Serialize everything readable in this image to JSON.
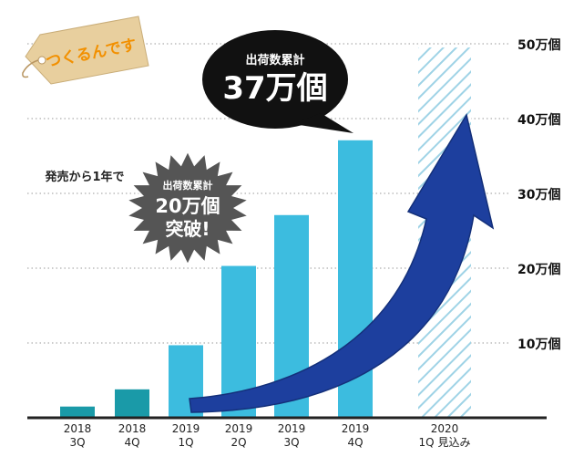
{
  "brand": {
    "tag_text": "つくるんです",
    "tag_color": "#e8cf9e",
    "tag_text_color": "#f29000"
  },
  "colors": {
    "bar_2018": "#1a9aa8",
    "bar_2019": "#3cbcdf",
    "projection_hatch": "#9fd3e6",
    "arrow": "#1d3f9e",
    "grid": "#9a9a9a"
  },
  "annotations": {
    "first_year_note": "発売から1年で",
    "burst_line1": "出荷数累計",
    "burst_line2": "20万個",
    "burst_line3": "突破!",
    "bubble_line1": "出荷数累計",
    "bubble_line2": "37万個"
  },
  "chart_data": {
    "type": "bar",
    "title": "",
    "xlabel": "",
    "ylabel": "",
    "ylim": [
      0,
      50
    ],
    "unit": "万個",
    "grid": true,
    "y_ticks": [
      {
        "value": 10,
        "label": "10万個"
      },
      {
        "value": 20,
        "label": "20万個"
      },
      {
        "value": 30,
        "label": "30万個"
      },
      {
        "value": 40,
        "label": "40万個"
      },
      {
        "value": 50,
        "label": "50万個"
      }
    ],
    "categories": [
      {
        "line1": "2018",
        "line2": "3Q"
      },
      {
        "line1": "2018",
        "line2": "4Q"
      },
      {
        "line1": "2019",
        "line2": "1Q"
      },
      {
        "line1": "2019",
        "line2": "2Q"
      },
      {
        "line1": "2019",
        "line2": "3Q"
      },
      {
        "line1": "2019",
        "line2": "4Q"
      },
      {
        "line1": "2020",
        "line2": "1Q 見込み"
      }
    ],
    "values": [
      1.5,
      3.8,
      9.7,
      20.3,
      27.1,
      37.1,
      49.5
    ],
    "projected": [
      false,
      false,
      false,
      false,
      false,
      false,
      true
    ]
  }
}
